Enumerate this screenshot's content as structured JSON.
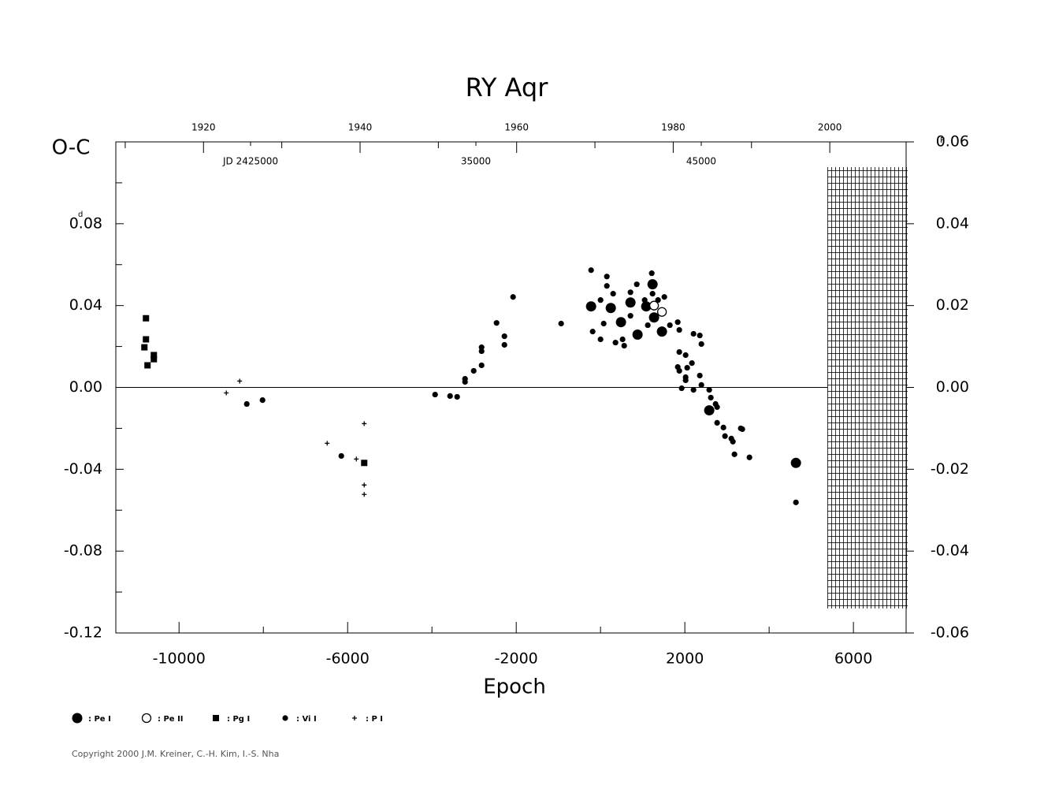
{
  "chart_data": {
    "type": "scatter",
    "title": "RY Aqr",
    "y_label": "O-C",
    "y_unit": "d",
    "y2_unit": "P",
    "x_label": "Epoch",
    "xlim": [
      -11500,
      7250
    ],
    "xticks": [
      -10000,
      -6000,
      -2000,
      2000,
      6000
    ],
    "xminorticks": [
      -8000,
      -4000,
      0,
      4000
    ],
    "ylim": [
      -0.12,
      0.12
    ],
    "yticks": [
      {
        "value": -0.12,
        "label": "-0.12"
      },
      {
        "value": -0.08,
        "label": "-0.08"
      },
      {
        "value": -0.04,
        "label": "-0.04"
      },
      {
        "value": 0,
        "label": "0.00"
      },
      0.04,
      0.08
    ],
    "yminorticks": [
      -0.1,
      -0.06,
      -0.02,
      0.02,
      0.06,
      0.1
    ],
    "y2lim": [
      -0.06,
      0.06
    ],
    "y2ticks": [
      {
        "value": -0.06,
        "label": "-0.06"
      },
      {
        "value": -0.04,
        "label": "-0.04"
      },
      {
        "value": -0.02,
        "label": "-0.02"
      },
      {
        "value": 0,
        "label": "0.00"
      },
      0.02,
      0.04,
      0.06
    ],
    "toplim": [
      1908.8,
      2009.75
    ],
    "topticks": [
      1920,
      1940,
      1960,
      1980,
      2000
    ],
    "topminorticks": [
      1910,
      1930,
      1950,
      1970,
      1990
    ],
    "jdlim": [
      19021,
      54091
    ],
    "jdticks": [
      {
        "value": 25000,
        "label": "JD 2425000"
      },
      {
        "value": 35000,
        "label": "35000"
      },
      {
        "value": 45000,
        "label": "45000"
      }
    ],
    "series": [
      {
        "name": ": Pe I",
        "marker": "big",
        "color": "#000",
        "x": [
          -224,
          485,
          710,
          878,
          1234,
          1270,
          1457,
          2579,
          4636,
          243,
          1084
        ],
        "values": [
          0.0396,
          0.0319,
          0.0415,
          0.0258,
          0.0504,
          0.0342,
          0.0273,
          -0.0112,
          -0.0369,
          0.0388,
          0.0396
        ]
      },
      {
        "name": ": Pe II",
        "marker": "open",
        "color": "#000",
        "x": [
          1270,
          1457
        ],
        "values": [
          0.04,
          0.0369
        ]
      },
      {
        "name": ": Pg I",
        "marker": "square",
        "color": "#000",
        "x": [
          -10785,
          -10785,
          -10822,
          -10598,
          -10598,
          -10748,
          -5607
        ],
        "values": [
          0.0338,
          0.0235,
          0.0196,
          0.0158,
          0.0138,
          0.0108,
          -0.0369
        ]
      },
      {
        "name": ": Vi I",
        "marker": "dot",
        "color": "#000",
        "x": [
          -8393,
          -8019,
          -6150,
          -3925,
          -3570,
          -3402,
          -3215,
          -3215,
          -3009,
          -2822,
          -2822,
          -2822,
          -2467,
          -2280,
          -2280,
          -2075,
          -935,
          -224,
          -187,
          0,
          0,
          75,
          150,
          150,
          299,
          355,
          523,
          561,
          710,
          710,
          860,
          1047,
          1121,
          1215,
          1234,
          1364,
          1514,
          1645,
          1832,
          1869,
          1869,
          1832,
          1869,
          1925,
          2019,
          2019,
          2019,
          2056,
          2168,
          2206,
          2206,
          2355,
          2393,
          2355,
          2393,
          2579,
          2617,
          2729,
          2766,
          2766,
          2916,
          2953,
          3103,
          3140,
          3178,
          3327,
          3364,
          3533,
          4636
        ],
        "values": [
          -0.0081,
          -0.0062,
          -0.0335,
          -0.0035,
          -0.0042,
          -0.0046,
          0.0027,
          0.0042,
          0.0081,
          0.0108,
          0.0177,
          0.0196,
          0.0315,
          0.0208,
          0.025,
          0.0442,
          0.0312,
          0.0573,
          0.0273,
          0.0235,
          0.0427,
          0.0312,
          0.0542,
          0.0496,
          0.0458,
          0.0219,
          0.0235,
          0.0204,
          0.0465,
          0.035,
          0.0504,
          0.0427,
          0.0304,
          0.0558,
          0.0458,
          0.0427,
          0.0442,
          0.0304,
          0.0319,
          0.0281,
          0.0173,
          0.01,
          0.0081,
          -0.0004,
          0.0158,
          0.005,
          0.0035,
          0.0096,
          0.0119,
          -0.0012,
          0.0262,
          0.0254,
          0.0212,
          0.0058,
          0.0012,
          -0.0012,
          -0.005,
          -0.0081,
          -0.0096,
          -0.0173,
          -0.0196,
          -0.0238,
          -0.025,
          -0.0265,
          -0.0327,
          -0.02,
          -0.0204,
          -0.0342,
          -0.0562
        ]
      },
      {
        "name": ": P I",
        "marker": "plus",
        "color": "#000",
        "x": [
          -8879,
          -8561,
          -6486,
          -5794,
          -5607,
          -5607,
          -5607
        ],
        "values": [
          -0.0027,
          0.0031,
          -0.0273,
          -0.035,
          -0.0177,
          -0.0477,
          -0.0523
        ]
      }
    ],
    "copyright": "Copyright 2000 J.M. Kreiner, C.-H. Kim, I.-S. Nha"
  }
}
